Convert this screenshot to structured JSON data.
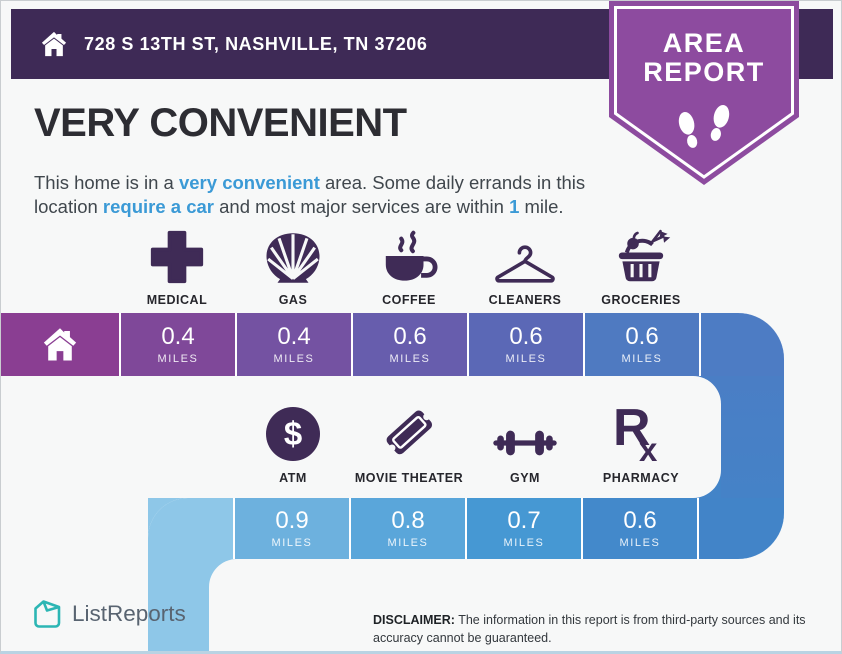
{
  "header": {
    "address": "728 S 13TH ST, NASHVILLE, TN 37206",
    "bg_color": "#3e2a56"
  },
  "badge": {
    "line1": "AREA",
    "line2": "REPORT",
    "bg_color": "#8d4b9f"
  },
  "headline": {
    "title": "VERY CONVENIENT"
  },
  "description": {
    "segments": [
      {
        "text": "This home is in a ",
        "highlight": false
      },
      {
        "text": "very convenient",
        "highlight": true
      },
      {
        "text": " area. Some daily errands in this location ",
        "highlight": false
      },
      {
        "text": "require a car",
        "highlight": true
      },
      {
        "text": " and most major services are within ",
        "highlight": false
      },
      {
        "text": "1",
        "highlight": true
      },
      {
        "text": " mile.",
        "highlight": false
      }
    ],
    "accent_color": "#3b9ad6"
  },
  "row1": {
    "home_cell_color": "#8a3e92",
    "filler_color": "#4d7cc4",
    "items": [
      {
        "icon": "medical-icon",
        "label": "MEDICAL",
        "distance": "0.4",
        "unit": "MILES",
        "cell_color": "#7f4899"
      },
      {
        "icon": "gas-icon",
        "label": "GAS",
        "distance": "0.4",
        "unit": "MILES",
        "cell_color": "#7452a2"
      },
      {
        "icon": "coffee-icon",
        "label": "COFFEE",
        "distance": "0.6",
        "unit": "MILES",
        "cell_color": "#675dad"
      },
      {
        "icon": "cleaners-icon",
        "label": "CLEANERS",
        "distance": "0.6",
        "unit": "MILES",
        "cell_color": "#5b68b6"
      },
      {
        "icon": "groceries-icon",
        "label": "GROCERIES",
        "distance": "0.6",
        "unit": "MILES",
        "cell_color": "#4f7ac1"
      }
    ]
  },
  "row2": {
    "lead_color": "#8ec7e8",
    "filler_color": "#4284c8",
    "items": [
      {
        "icon": "atm-icon",
        "label": "ATM",
        "distance": "0.9",
        "unit": "MILES",
        "cell_color": "#6db1de"
      },
      {
        "icon": "movie-theater-icon",
        "label": "MOVIE THEATER",
        "distance": "0.8",
        "unit": "MILES",
        "cell_color": "#5aa6da"
      },
      {
        "icon": "gym-icon",
        "label": "GYM",
        "distance": "0.7",
        "unit": "MILES",
        "cell_color": "#4698d3"
      },
      {
        "icon": "pharmacy-icon",
        "label": "PHARMACY",
        "distance": "0.6",
        "unit": "MILES",
        "cell_color": "#4389cb"
      }
    ]
  },
  "footer": {
    "brand": "ListReports",
    "brand_color": "#2cb6b4",
    "disclaimer_label": "DISCLAIMER:",
    "disclaimer_text": " The information in this report is from third-party sources and its accuracy cannot be guaranteed."
  }
}
